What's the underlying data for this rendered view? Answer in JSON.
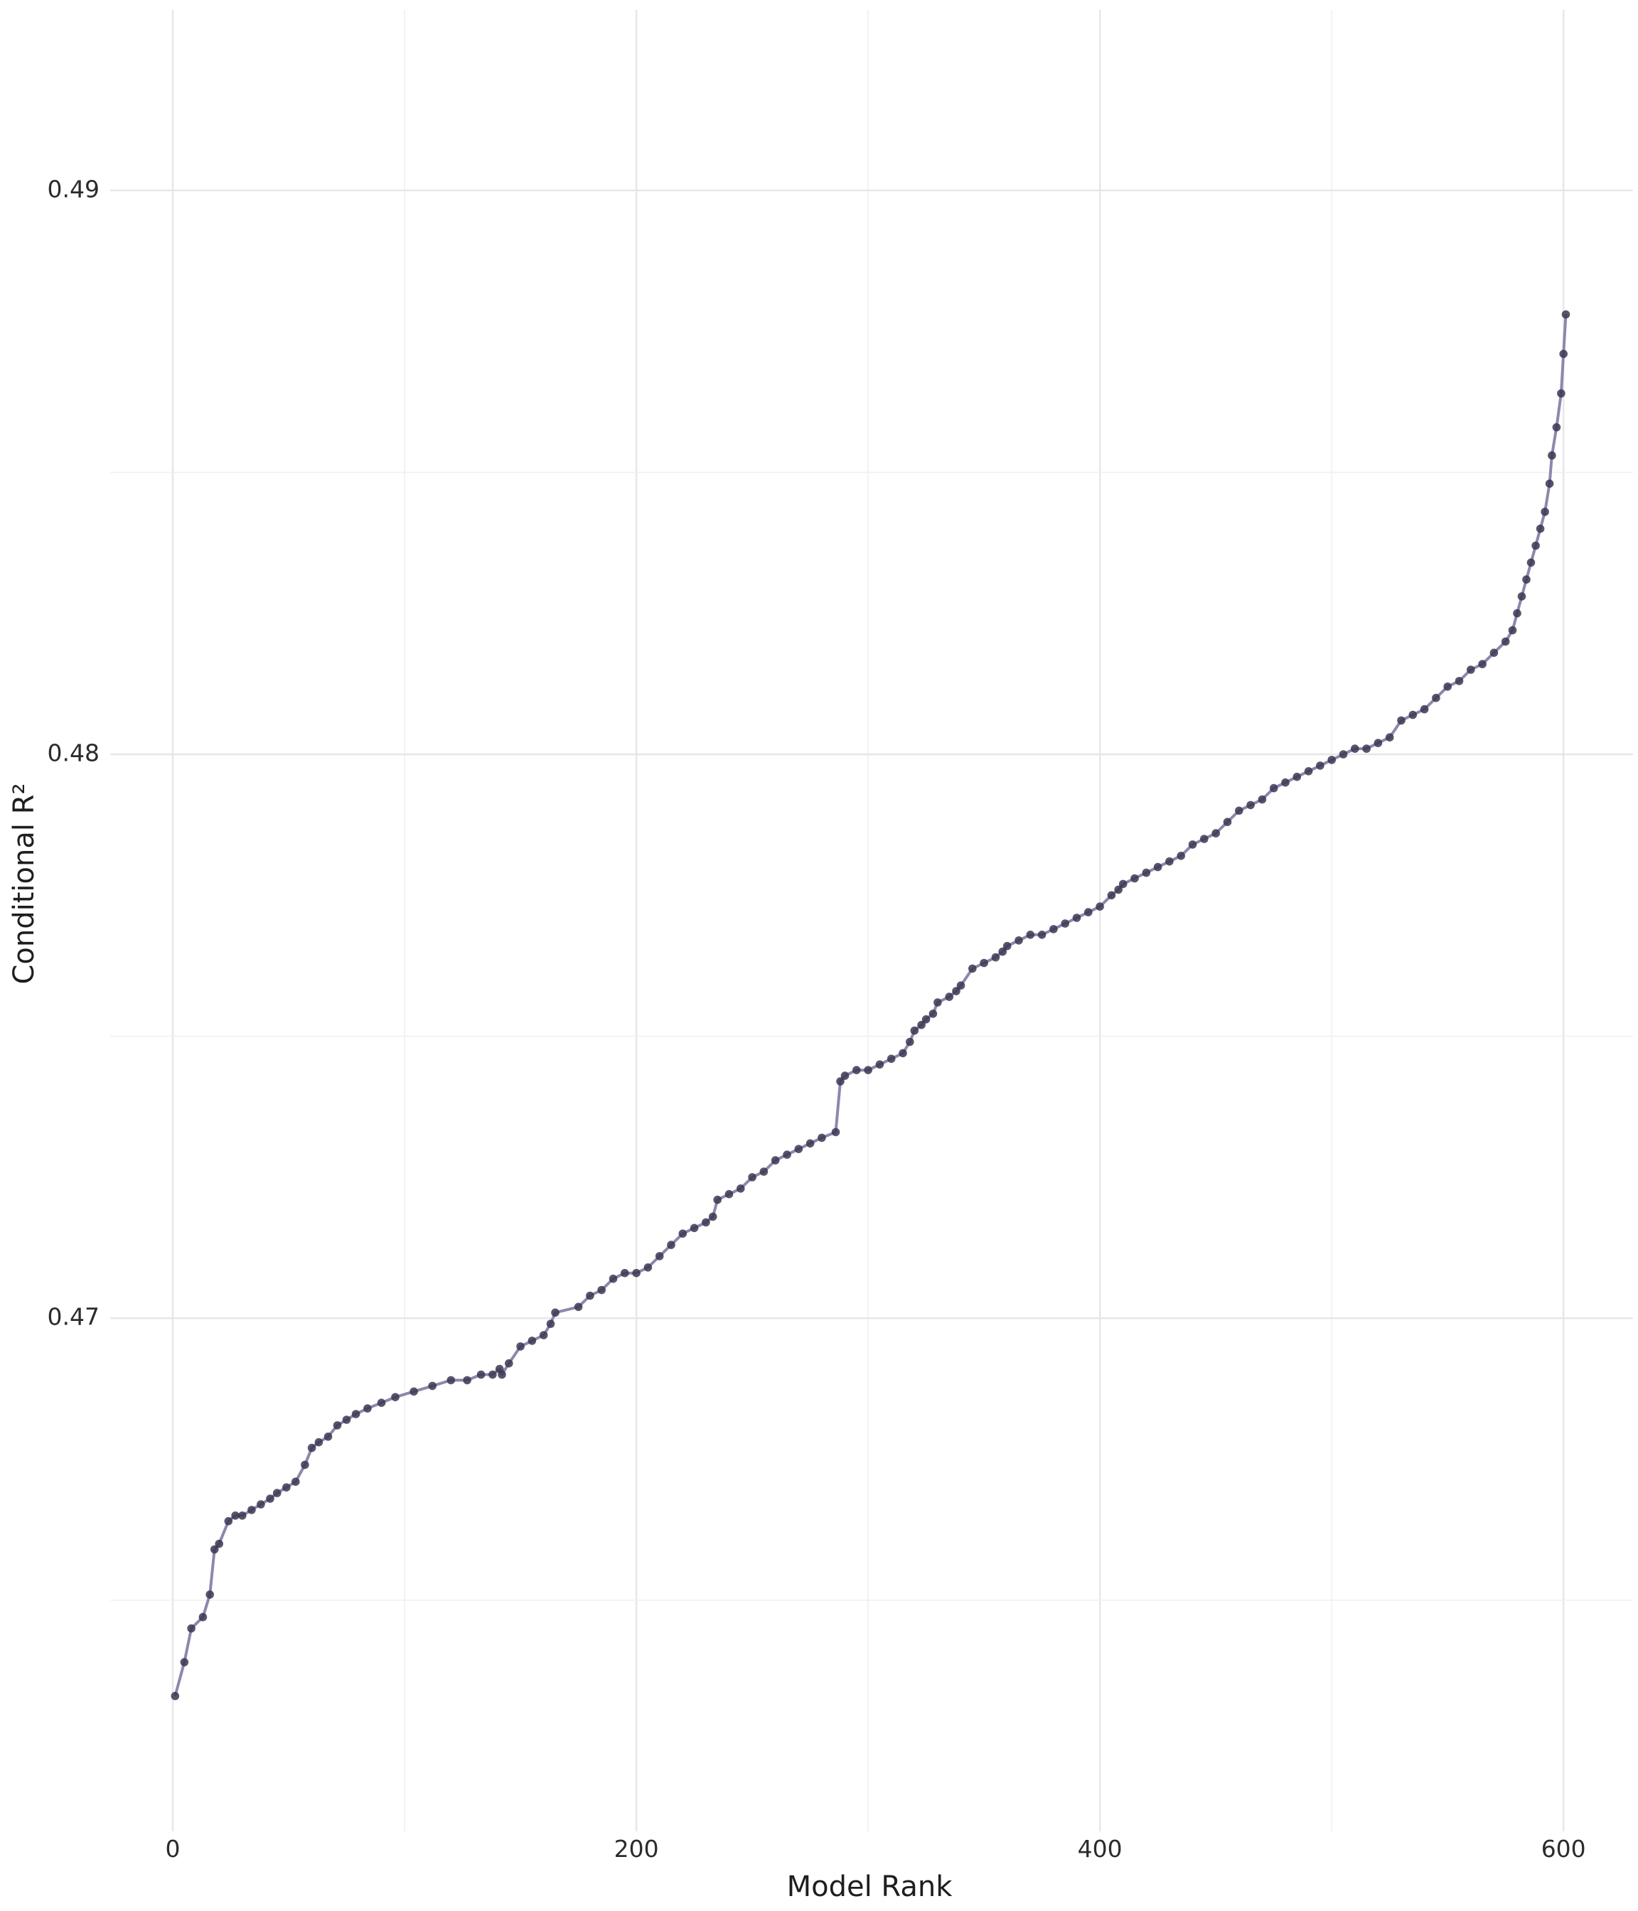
{
  "chart_data": {
    "type": "scatter",
    "xlabel": "Model Rank",
    "ylabel": "Conditional R²",
    "x_ticks": [
      0,
      200,
      400,
      600
    ],
    "x_tick_labels": [
      "0",
      "200",
      "400",
      "600"
    ],
    "y_ticks": [
      0.47,
      0.48,
      0.49
    ],
    "y_tick_labels": [
      "0.47",
      "0.48",
      "0.49"
    ],
    "xlim": [
      -27,
      630
    ],
    "ylim": [
      0.4609,
      0.4932
    ],
    "grid": true,
    "legend": "none",
    "connected": true,
    "colors": {
      "line": "#8d87ad",
      "points": "#3b3651",
      "grid": "#e6e6ea"
    },
    "series": [
      {
        "x": [
          1,
          5,
          8,
          13,
          16,
          18,
          20,
          24,
          27,
          30,
          34,
          38,
          42,
          45,
          49,
          53,
          57,
          60,
          63,
          67,
          71,
          75,
          79,
          84,
          90,
          96,
          104,
          112,
          120,
          127,
          133,
          138,
          141,
          142,
          145,
          150,
          155,
          160,
          163,
          165,
          175,
          180,
          185,
          190,
          195,
          200,
          205,
          210,
          215,
          220,
          225,
          230,
          233,
          235,
          240,
          245,
          250,
          255,
          260,
          265,
          270,
          275,
          280,
          286,
          288,
          290,
          295,
          300,
          305,
          310,
          315,
          318,
          320,
          323,
          325,
          328,
          330,
          335,
          338,
          340,
          345,
          350,
          355,
          358,
          360,
          365,
          370,
          375,
          380,
          385,
          390,
          395,
          400,
          405,
          408,
          410,
          415,
          420,
          425,
          430,
          435,
          440,
          445,
          450,
          455,
          460,
          465,
          470,
          475,
          480,
          485,
          490,
          495,
          500,
          505,
          510,
          515,
          520,
          525,
          530,
          535,
          540,
          545,
          550,
          555,
          560,
          565,
          570,
          575,
          578,
          580,
          582,
          584,
          586,
          588,
          590,
          592,
          594,
          595,
          597,
          599,
          600,
          601
        ],
        "y": [
          0.4633,
          0.4639,
          0.4645,
          0.4647,
          0.4651,
          0.4659,
          0.466,
          0.4664,
          0.4665,
          0.4665,
          0.4666,
          0.4667,
          0.4668,
          0.4669,
          0.467,
          0.4671,
          0.4674,
          0.4677,
          0.4678,
          0.4679,
          0.4681,
          0.4682,
          0.4683,
          0.4684,
          0.4685,
          0.4686,
          0.4687,
          0.4688,
          0.4689,
          0.4689,
          0.469,
          0.469,
          0.4691,
          0.469,
          0.4692,
          0.4695,
          0.4696,
          0.4697,
          0.4699,
          0.4701,
          0.4702,
          0.4704,
          0.4705,
          0.4707,
          0.4708,
          0.4708,
          0.4709,
          0.4711,
          0.4713,
          0.4715,
          0.4716,
          0.4717,
          0.4718,
          0.4721,
          0.4722,
          0.4723,
          0.4725,
          0.4726,
          0.4728,
          0.4729,
          0.473,
          0.4731,
          0.4732,
          0.4733,
          0.4742,
          0.4743,
          0.4744,
          0.4744,
          0.4745,
          0.4746,
          0.4747,
          0.4749,
          0.4751,
          0.4752,
          0.4753,
          0.4754,
          0.4756,
          0.4757,
          0.4758,
          0.4759,
          0.4762,
          0.4763,
          0.4764,
          0.4765,
          0.4766,
          0.4767,
          0.4768,
          0.4768,
          0.4769,
          0.477,
          0.4771,
          0.4772,
          0.4773,
          0.4775,
          0.4776,
          0.4777,
          0.4778,
          0.4779,
          0.478,
          0.4781,
          0.4782,
          0.4784,
          0.4785,
          0.4786,
          0.4788,
          0.479,
          0.4791,
          0.4792,
          0.4794,
          0.4795,
          0.4796,
          0.4797,
          0.4798,
          0.4799,
          0.48,
          0.4801,
          0.4801,
          0.4802,
          0.4803,
          0.4806,
          0.4807,
          0.4808,
          0.481,
          0.4812,
          0.4813,
          0.4815,
          0.4816,
          0.4818,
          0.482,
          0.4822,
          0.4825,
          0.4828,
          0.4831,
          0.4834,
          0.4837,
          0.484,
          0.4843,
          0.4848,
          0.4853,
          0.4858,
          0.4864,
          0.4871,
          0.4878
        ]
      }
    ]
  }
}
